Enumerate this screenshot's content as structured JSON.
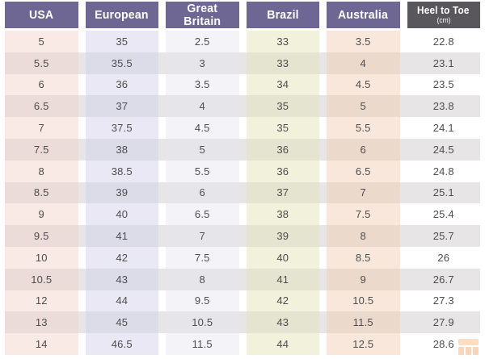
{
  "chart_data": {
    "type": "table",
    "columns": [
      {
        "label": "USA"
      },
      {
        "label": "European"
      },
      {
        "label": "Great Britain"
      },
      {
        "label": "Brazil"
      },
      {
        "label": "Australia"
      },
      {
        "label": "Heel to Toe",
        "sublabel": "(cm)"
      }
    ],
    "rows": [
      [
        "5",
        "35",
        "2.5",
        "33",
        "3.5",
        "22.8"
      ],
      [
        "5.5",
        "35.5",
        "3",
        "33",
        "4",
        "23.1"
      ],
      [
        "6",
        "36",
        "3.5",
        "34",
        "4.5",
        "23.5"
      ],
      [
        "6.5",
        "37",
        "4",
        "35",
        "5",
        "23.8"
      ],
      [
        "7",
        "37.5",
        "4.5",
        "35",
        "5.5",
        "24.1"
      ],
      [
        "7.5",
        "38",
        "5",
        "36",
        "6",
        "24.5"
      ],
      [
        "8",
        "38.5",
        "5.5",
        "36",
        "6.5",
        "24.8"
      ],
      [
        "8.5",
        "39",
        "6",
        "37",
        "7",
        "25.1"
      ],
      [
        "9",
        "40",
        "6.5",
        "38",
        "7.5",
        "25.4"
      ],
      [
        "9.5",
        "41",
        "7",
        "39",
        "8",
        "25.7"
      ],
      [
        "10",
        "42",
        "7.5",
        "40",
        "8.5",
        "26"
      ],
      [
        "10.5",
        "43",
        "8",
        "41",
        "9",
        "26.7"
      ],
      [
        "12",
        "44",
        "9.5",
        "42",
        "10.5",
        "27.3"
      ],
      [
        "13",
        "45",
        "10.5",
        "43",
        "11.5",
        "27.9"
      ],
      [
        "14",
        "46.5",
        "11.5",
        "44",
        "12.5",
        "28.6"
      ]
    ],
    "layout": {
      "stripes": "alternate rows shaded gray",
      "legend": "none",
      "grid": "off"
    }
  },
  "theme": {
    "header_purple": "#6f6793",
    "header_dark_gray": "#59575b",
    "header_text": "#ffffff",
    "body_text": "#4f4d4e",
    "column_tints": {
      "usa": "#f9eae6",
      "european": "#e9e8f4",
      "great_britain": "#f3f3f8",
      "brazil": "#f2f1dc",
      "australia": "#f8e7da",
      "heel_to_toe": "#ffffff"
    },
    "stripe_gray": "#e7e5e5",
    "watermark_orange": "#f08c3c"
  },
  "icons": {
    "watermark": "grid-logo-watermark"
  }
}
